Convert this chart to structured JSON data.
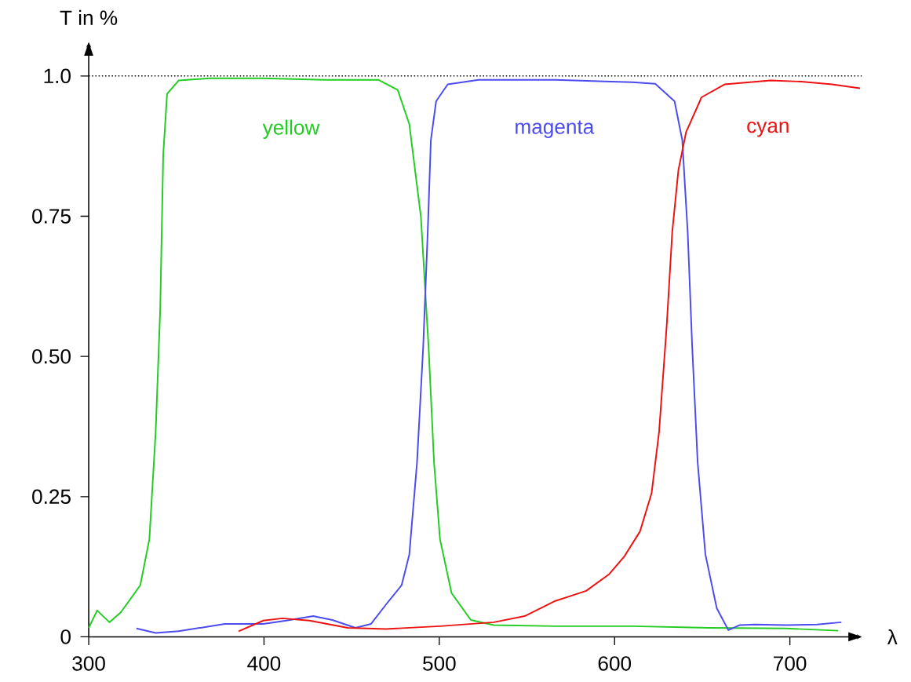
{
  "chart_data": {
    "type": "line",
    "xlabel": "λ",
    "ylabel": "T in %",
    "xlim": [
      300,
      741
    ],
    "ylim": [
      0,
      1.06
    ],
    "xticks": [
      300,
      400,
      500,
      600,
      700
    ],
    "yticks": [
      {
        "value": 0,
        "label": "0"
      },
      {
        "value": 0.25,
        "label": "0.25"
      },
      {
        "value": 0.5,
        "label": "0.50"
      },
      {
        "value": 0.75,
        "label": "0.75"
      },
      {
        "value": 1.0,
        "label": "1.0"
      }
    ],
    "grid": false,
    "marker": "none",
    "line_style": "solid",
    "ref_lines": [
      {
        "axis": "y",
        "value": 1.0,
        "line_style": "dotted",
        "color": "#000000"
      }
    ],
    "series": [
      {
        "name": "yellow",
        "color": "#22cc22",
        "x": [
          300,
          304.8,
          311.8,
          318.4,
          329.4,
          334.6,
          338.2,
          340.8,
          342.5,
          344.7,
          351.3,
          368.9,
          399.6,
          434.6,
          465.4,
          476.3,
          482.9,
          489.5,
          493.9,
          497,
          500.4,
          507,
          518,
          531.1,
          566.2,
          610.1,
          654,
          697.8,
          727.6
        ],
        "values": [
          0.016,
          0.047,
          0.026,
          0.044,
          0.092,
          0.174,
          0.366,
          0.585,
          0.859,
          0.968,
          0.992,
          0.996,
          0.996,
          0.993,
          0.993,
          0.975,
          0.914,
          0.749,
          0.516,
          0.311,
          0.174,
          0.078,
          0.03,
          0.021,
          0.019,
          0.019,
          0.016,
          0.015,
          0.011
        ]
      },
      {
        "name": "magenta",
        "color": "#4b4bf0",
        "x": [
          327.2,
          338.2,
          351.3,
          377.6,
          399.6,
          412.7,
          428.1,
          439,
          452.2,
          461,
          469.7,
          478.5,
          482.9,
          487.3,
          490.8,
          493.4,
          495.2,
          498.2,
          504.8,
          522.4,
          566.2,
          610.1,
          623.2,
          634.2,
          638.6,
          641.7,
          644.3,
          647.4,
          651.8,
          658.3,
          664.9,
          671.5,
          680.3,
          697.8,
          715.4,
          729.4
        ],
        "values": [
          0.015,
          0.007,
          0.01,
          0.023,
          0.023,
          0.029,
          0.037,
          0.03,
          0.016,
          0.023,
          0.058,
          0.092,
          0.147,
          0.311,
          0.516,
          0.722,
          0.886,
          0.955,
          0.985,
          0.993,
          0.993,
          0.989,
          0.986,
          0.955,
          0.886,
          0.722,
          0.516,
          0.311,
          0.147,
          0.051,
          0.012,
          0.021,
          0.022,
          0.021,
          0.022,
          0.026
        ]
      },
      {
        "name": "cyan",
        "color": "#ee1111",
        "x": [
          385.5,
          399.6,
          410.5,
          425.9,
          447.8,
          469.7,
          500.4,
          531.1,
          548.7,
          566.2,
          583.8,
          597,
          605.7,
          614.5,
          621.1,
          625.4,
          629.8,
          632.9,
          636.4,
          640.8,
          649.6,
          662.7,
          689,
          706.6,
          724.1,
          740
        ],
        "values": [
          0.01,
          0.029,
          0.033,
          0.029,
          0.016,
          0.014,
          0.019,
          0.026,
          0.037,
          0.064,
          0.082,
          0.112,
          0.144,
          0.188,
          0.256,
          0.366,
          0.558,
          0.722,
          0.832,
          0.9,
          0.962,
          0.985,
          0.992,
          0.99,
          0.985,
          0.978
        ]
      }
    ]
  }
}
